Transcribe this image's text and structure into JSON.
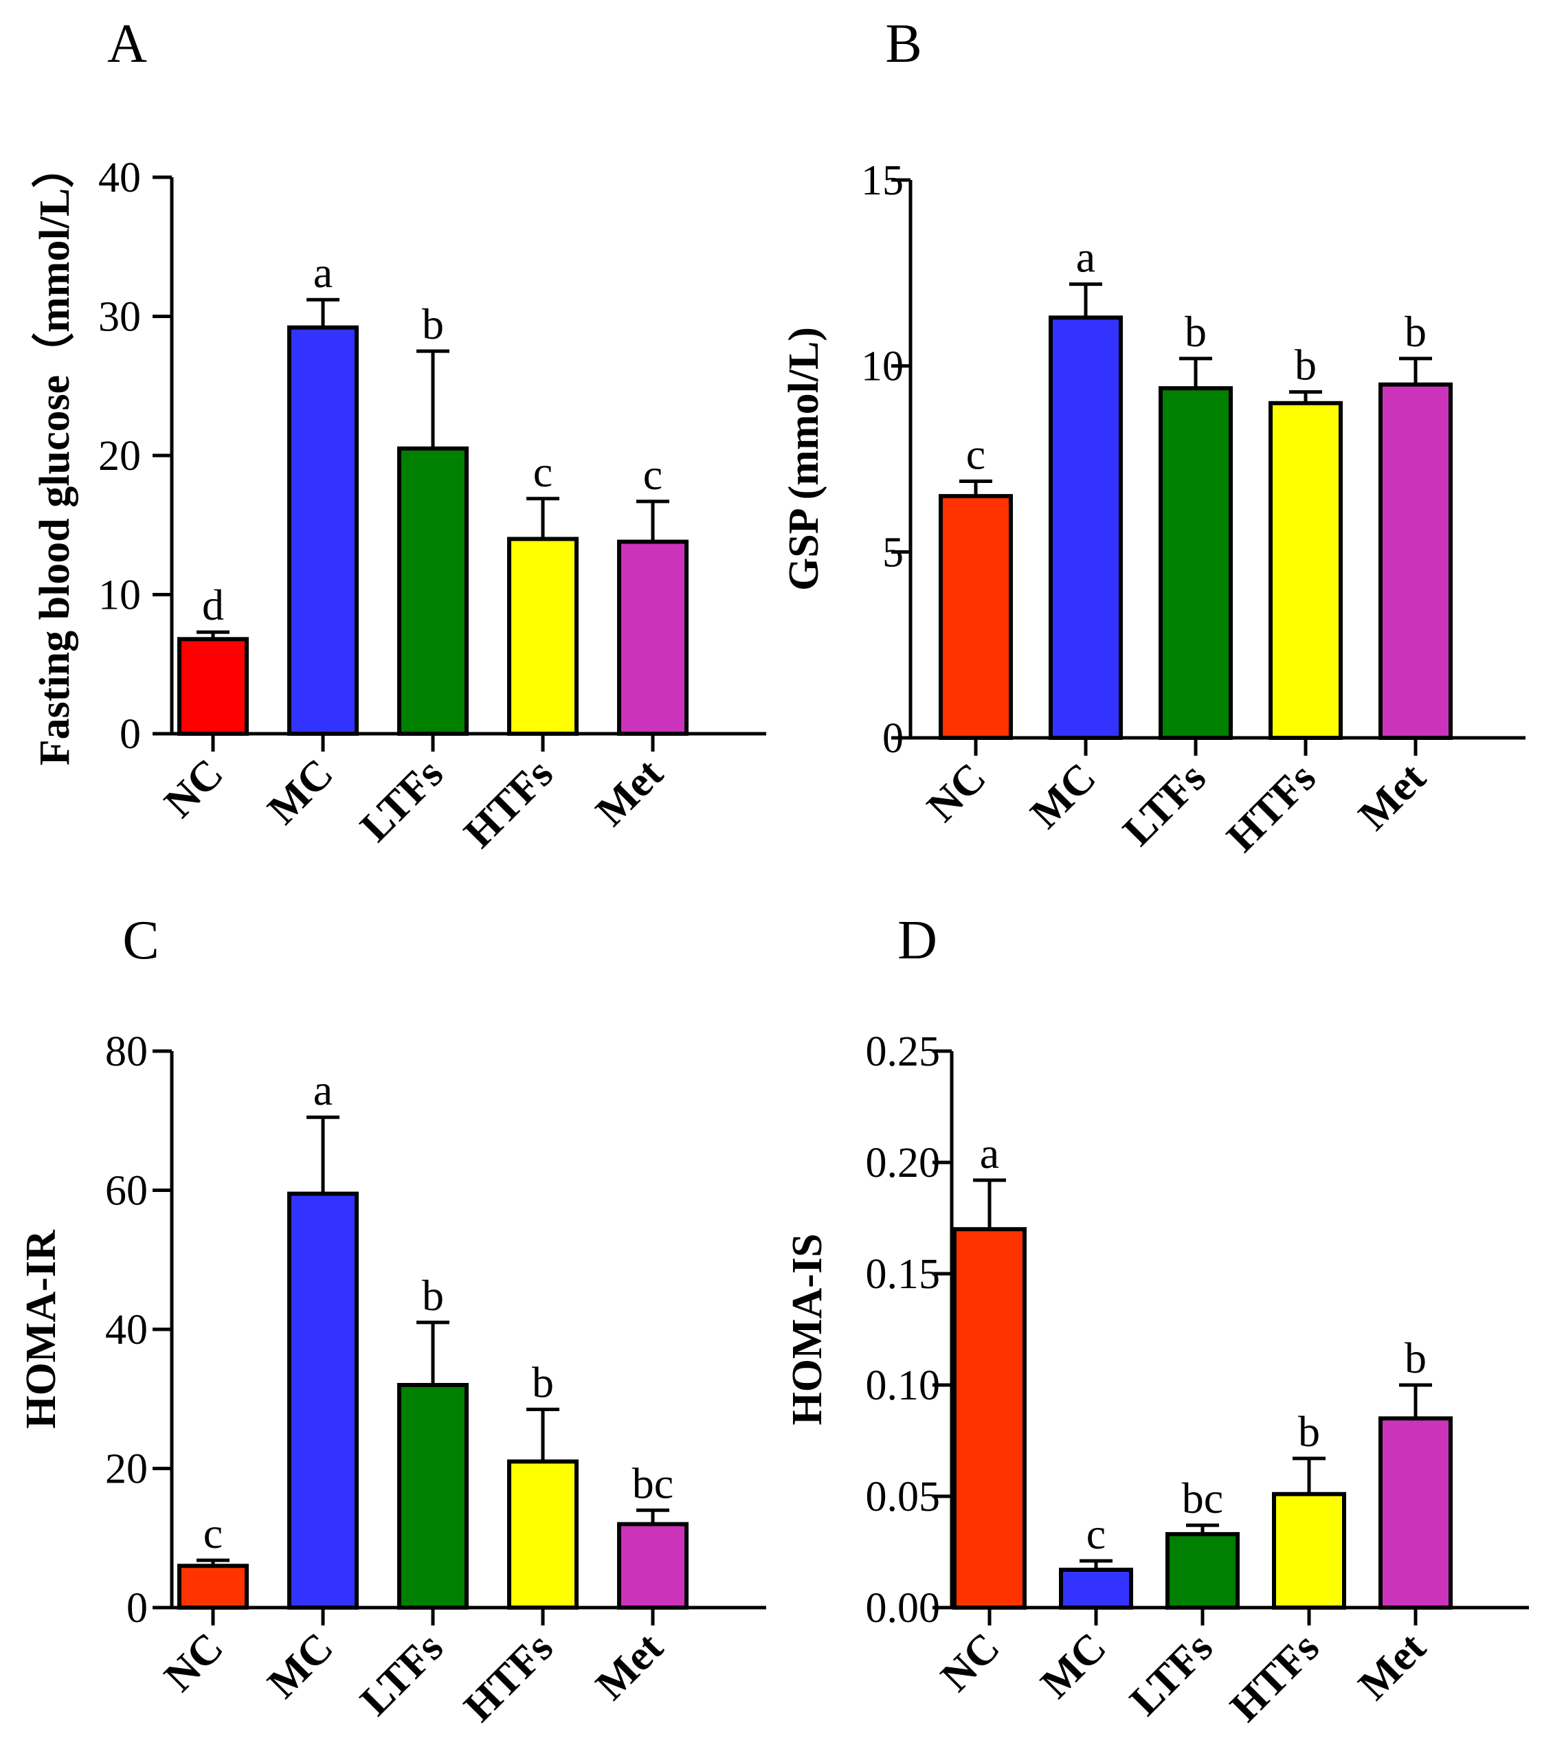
{
  "chart_data": [
    {
      "type": "bar",
      "panel": "A",
      "title": "",
      "xlabel": "",
      "ylabel": "Fasting blood glucose（mmol/L）",
      "categories": [
        "NC",
        "MC",
        "LTFs",
        "HTFs",
        "Met"
      ],
      "values": [
        6.8,
        29.2,
        20.5,
        14.0,
        13.8
      ],
      "errors": [
        0.5,
        2.0,
        7.0,
        2.9,
        2.9
      ],
      "significance": [
        "d",
        "a",
        "b",
        "c",
        "c"
      ],
      "colors": [
        "#ff0000",
        "#3333ff",
        "#008000",
        "#ffff00",
        "#cc33bb"
      ],
      "ylim": [
        0,
        40
      ],
      "yticks": [
        0,
        10,
        20,
        30,
        40
      ],
      "ytick_labels": [
        "0",
        "10",
        "20",
        "30",
        "40"
      ]
    },
    {
      "type": "bar",
      "panel": "B",
      "title": "",
      "xlabel": "",
      "ylabel": "GSP (mmol/L)",
      "categories": [
        "NC",
        "MC",
        "LTFs",
        "HTFs",
        "Met"
      ],
      "values": [
        6.5,
        11.3,
        9.4,
        9.0,
        9.5
      ],
      "errors": [
        0.4,
        0.9,
        0.8,
        0.3,
        0.7
      ],
      "significance": [
        "c",
        "a",
        "b",
        "b",
        "b"
      ],
      "colors": [
        "#ff3300",
        "#3333ff",
        "#008000",
        "#ffff00",
        "#cc33bb"
      ],
      "ylim": [
        0,
        15
      ],
      "yticks": [
        0,
        5,
        10,
        15
      ],
      "ytick_labels": [
        "0",
        "5",
        "10",
        "15"
      ]
    },
    {
      "type": "bar",
      "panel": "C",
      "title": "",
      "xlabel": "",
      "ylabel": "HOMA-IR",
      "categories": [
        "NC",
        "MC",
        "LTFs",
        "HTFs",
        "Met"
      ],
      "values": [
        6.0,
        59.5,
        32.0,
        21.0,
        12.0
      ],
      "errors": [
        0.8,
        11.0,
        9.0,
        7.5,
        2.0
      ],
      "significance": [
        "c",
        "a",
        "b",
        "b",
        "bc"
      ],
      "colors": [
        "#ff3300",
        "#3333ff",
        "#008000",
        "#ffff00",
        "#cc33bb"
      ],
      "ylim": [
        0,
        80
      ],
      "yticks": [
        0,
        20,
        40,
        60,
        80
      ],
      "ytick_labels": [
        "0",
        "20",
        "40",
        "60",
        "80"
      ]
    },
    {
      "type": "bar",
      "panel": "D",
      "title": "",
      "xlabel": "",
      "ylabel": "HOMA-IS",
      "categories": [
        "NC",
        "MC",
        "LTFs",
        "HTFs",
        "Met"
      ],
      "values": [
        0.17,
        0.017,
        0.033,
        0.051,
        0.085
      ],
      "errors": [
        0.022,
        0.004,
        0.004,
        0.016,
        0.015
      ],
      "significance": [
        "a",
        "c",
        "bc",
        "b",
        "b"
      ],
      "colors": [
        "#ff3300",
        "#3333ff",
        "#008000",
        "#ffff00",
        "#cc33bb"
      ],
      "ylim": [
        0,
        0.25
      ],
      "yticks": [
        0,
        0.05,
        0.1,
        0.15,
        0.2,
        0.25
      ],
      "ytick_labels": [
        "0.00",
        "0.05",
        "0.10",
        "0.15",
        "0.20",
        "0.25"
      ]
    }
  ]
}
